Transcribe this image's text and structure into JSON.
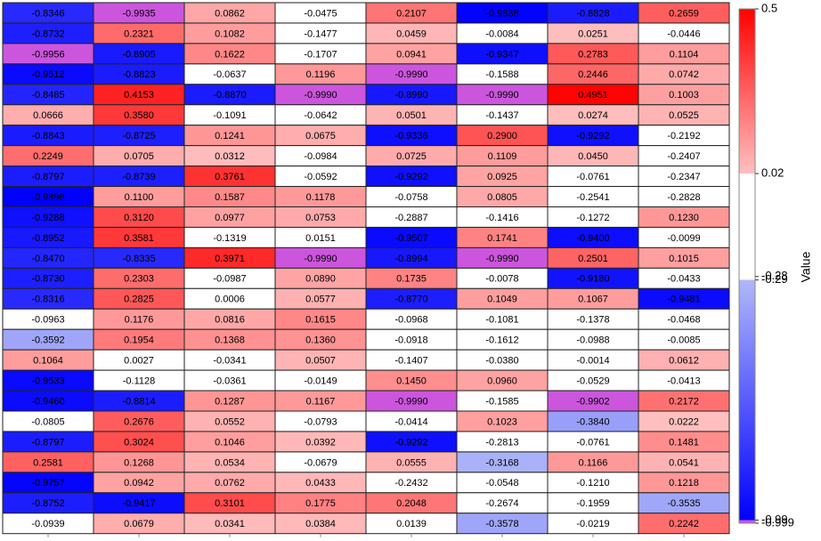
{
  "chart_data": {
    "type": "heatmap",
    "colorbar_label": "Value",
    "ylim": [
      -0.999,
      0.5
    ],
    "yticks": [
      0.5,
      0.02,
      -0.28,
      -0.29,
      -0.99,
      -0.999
    ],
    "colormap": [
      "#cc55dd",
      "#0000ff",
      "#b0b8f8",
      "#ffffff",
      "#ffc0c0",
      "#ff0000"
    ],
    "values": [
      [
        -0.8346,
        -0.9935,
        0.0862,
        -0.0475,
        0.2107,
        -0.9838,
        -0.8828,
        0.2659
      ],
      [
        -0.8732,
        0.2321,
        0.1082,
        -0.1477,
        0.0459,
        -0.0084,
        0.0251,
        -0.0446
      ],
      [
        -0.9956,
        -0.8905,
        0.1622,
        -0.1707,
        0.0941,
        -0.9347,
        0.2783,
        0.1104
      ],
      [
        -0.9512,
        -0.8823,
        -0.0637,
        0.1196,
        -0.999,
        -0.1588,
        0.2446,
        0.0742
      ],
      [
        -0.8485,
        0.4153,
        -0.887,
        -0.999,
        -0.899,
        -0.999,
        0.4951,
        0.1003
      ],
      [
        0.0666,
        0.358,
        -0.1091,
        -0.0642,
        0.0501,
        -0.1437,
        0.0274,
        0.0525
      ],
      [
        -0.8843,
        -0.8725,
        0.1241,
        0.0675,
        -0.9336,
        0.29,
        -0.9292,
        -0.2192
      ],
      [
        0.2249,
        0.0705,
        0.0312,
        -0.0984,
        0.0725,
        0.1109,
        0.045,
        -0.2407
      ],
      [
        -0.8797,
        -0.8739,
        0.3761,
        -0.0592,
        -0.9292,
        0.0925,
        -0.0761,
        -0.2347
      ],
      [
        -0.9898,
        0.11,
        0.1587,
        0.1178,
        -0.0758,
        0.0805,
        -0.2541,
        -0.2828
      ],
      [
        -0.9288,
        0.312,
        0.0977,
        0.0753,
        -0.2887,
        -0.1416,
        -0.1272,
        0.123
      ],
      [
        -0.8952,
        0.3581,
        -0.1319,
        0.0151,
        -0.9507,
        0.1741,
        -0.94,
        -0.0099
      ],
      [
        -0.847,
        -0.8335,
        0.3971,
        -0.999,
        -0.8994,
        -0.999,
        0.2501,
        0.1015
      ],
      [
        -0.873,
        0.2303,
        -0.0987,
        0.089,
        0.1735,
        -0.0078,
        -0.918,
        -0.0433
      ],
      [
        -0.8316,
        0.2825,
        0.0006,
        0.0577,
        -0.877,
        0.1049,
        0.1067,
        -0.9481
      ],
      [
        -0.0963,
        0.1176,
        0.0816,
        0.1615,
        -0.0968,
        -0.1081,
        -0.1378,
        -0.0468
      ],
      [
        -0.3592,
        0.1954,
        0.1368,
        0.136,
        -0.0918,
        -0.1612,
        -0.0988,
        -0.0085
      ],
      [
        0.1064,
        0.0027,
        -0.0341,
        0.0507,
        -0.1407,
        -0.038,
        -0.0014,
        0.0612
      ],
      [
        -0.9533,
        -0.1128,
        -0.0361,
        -0.0149,
        0.145,
        0.096,
        -0.0529,
        -0.0413
      ],
      [
        -0.946,
        -0.8814,
        0.1287,
        0.1167,
        -0.999,
        -0.1585,
        -0.9902,
        0.2172
      ],
      [
        -0.0805,
        0.2676,
        0.0552,
        -0.0793,
        -0.0414,
        0.1023,
        -0.384,
        0.0222
      ],
      [
        -0.8797,
        0.3024,
        0.1046,
        0.0392,
        -0.9292,
        -0.2813,
        -0.0761,
        0.1481
      ],
      [
        0.2581,
        0.1268,
        0.0534,
        -0.0679,
        0.0555,
        -0.3168,
        0.1166,
        0.0541
      ],
      [
        -0.9757,
        0.0942,
        0.0762,
        0.0433,
        -0.2432,
        -0.0548,
        -0.121,
        0.1218
      ],
      [
        -0.8752,
        -0.9417,
        0.3101,
        0.1775,
        0.2048,
        -0.2674,
        -0.1959,
        -0.3535
      ],
      [
        -0.0939,
        0.0679,
        0.0341,
        0.0384,
        0.0139,
        -0.3578,
        -0.0219,
        0.2242
      ]
    ],
    "value_labels": [
      [
        "-0.8346",
        "-0.9935",
        "0.0862",
        "-0.0475",
        "0.2107",
        "-0.9838",
        "-0.8828",
        "0.2659"
      ],
      [
        "-0.8732",
        "0.2321",
        "0.1082",
        "-0.1477",
        "0.0459",
        "-0.0084",
        "0.0251",
        "-0.0446"
      ],
      [
        "-0.9956",
        "-0.8905",
        "0.1622",
        "-0.1707",
        "0.0941",
        "-0.9347",
        "0.2783",
        "0.1104"
      ],
      [
        "-0.9512",
        "-0.8823",
        "-0.0637",
        "0.1196",
        "-0.9990",
        "-0.1588",
        "0.2446",
        "0.0742"
      ],
      [
        "-0.8485",
        "0.4153",
        "-0.8870",
        "-0.9990",
        "-0.8990",
        "-0.9990",
        "0.4951",
        "0.1003"
      ],
      [
        "0.0666",
        "0.3580",
        "-0.1091",
        "-0.0642",
        "0.0501",
        "-0.1437",
        "0.0274",
        "0.0525"
      ],
      [
        "-0.8843",
        "-0.8725",
        "0.1241",
        "0.0675",
        "-0.9336",
        "0.2900",
        "-0.9292",
        "-0.2192"
      ],
      [
        "0.2249",
        "0.0705",
        "0.0312",
        "-0.0984",
        "0.0725",
        "0.1109",
        "0.0450",
        "-0.2407"
      ],
      [
        "-0.8797",
        "-0.8739",
        "0.3761",
        "-0.0592",
        "-0.9292",
        "0.0925",
        "-0.0761",
        "-0.2347"
      ],
      [
        "-0.9898",
        "0.1100",
        "0.1587",
        "0.1178",
        "-0.0758",
        "0.0805",
        "-0.2541",
        "-0.2828"
      ],
      [
        "-0.9288",
        "0.3120",
        "0.0977",
        "0.0753",
        "-0.2887",
        "-0.1416",
        "-0.1272",
        "0.1230"
      ],
      [
        "-0.8952",
        "0.3581",
        "-0.1319",
        "0.0151",
        "-0.9507",
        "0.1741",
        "-0.9400",
        "-0.0099"
      ],
      [
        "-0.8470",
        "-0.8335",
        "0.3971",
        "-0.9990",
        "-0.8994",
        "-0.9990",
        "0.2501",
        "0.1015"
      ],
      [
        "-0.8730",
        "0.2303",
        "-0.0987",
        "0.0890",
        "0.1735",
        "-0.0078",
        "-0.9180",
        "-0.0433"
      ],
      [
        "-0.8316",
        "0.2825",
        "0.0006",
        "0.0577",
        "-0.8770",
        "0.1049",
        "0.1067",
        "-0.9481"
      ],
      [
        "-0.0963",
        "0.1176",
        "0.0816",
        "0.1615",
        "-0.0968",
        "-0.1081",
        "-0.1378",
        "-0.0468"
      ],
      [
        "-0.3592",
        "0.1954",
        "0.1368",
        "0.1360",
        "-0.0918",
        "-0.1612",
        "-0.0988",
        "-0.0085"
      ],
      [
        "0.1064",
        "0.0027",
        "-0.0341",
        "0.0507",
        "-0.1407",
        "-0.0380",
        "-0.0014",
        "0.0612"
      ],
      [
        "-0.9533",
        "-0.1128",
        "-0.0361",
        "-0.0149",
        "0.1450",
        "0.0960",
        "-0.0529",
        "-0.0413"
      ],
      [
        "-0.9460",
        "-0.8814",
        "0.1287",
        "0.1167",
        "-0.9990",
        "-0.1585",
        "-0.9902",
        "0.2172"
      ],
      [
        "-0.0805",
        "0.2676",
        "0.0552",
        "-0.0793",
        "-0.0414",
        "0.1023",
        "-0.3840",
        "0.0222"
      ],
      [
        "-0.8797",
        "0.3024",
        "0.1046",
        "0.0392",
        "-0.9292",
        "-0.2813",
        "-0.0761",
        "0.1481"
      ],
      [
        "0.2581",
        "0.1268",
        "0.0534",
        "-0.0679",
        "0.0555",
        "-0.3168",
        "0.1166",
        "0.0541"
      ],
      [
        "-0.9757",
        "0.0942",
        "0.0762",
        "0.0433",
        "-0.2432",
        "-0.0548",
        "-0.1210",
        "0.1218"
      ],
      [
        "-0.8752",
        "-0.9417",
        "0.3101",
        "0.1775",
        "0.2048",
        "-0.2674",
        "-0.1959",
        "-0.3535"
      ],
      [
        "-0.0939",
        "0.0679",
        "0.0341",
        "0.0384",
        "0.0139",
        "-0.3578",
        "-0.0219",
        "0.2242"
      ]
    ]
  }
}
